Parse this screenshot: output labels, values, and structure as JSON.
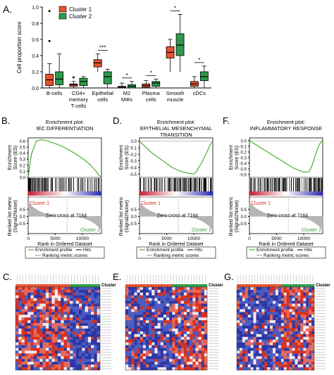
{
  "panel_letters": {
    "a": "A.",
    "b": "B.",
    "d": "D.",
    "f": "F.",
    "c": "C.",
    "e": "E.",
    "g": "G."
  },
  "boxplot": {
    "ylabel": "Cell proportion score",
    "yticks": [
      "0.0",
      "0.2",
      "0.4",
      "0.6",
      "0.8",
      "1.0"
    ],
    "legend": [
      "Cluster 1",
      "Cluster 2"
    ],
    "category_labels": [
      [
        "B-cells"
      ],
      [
        "CD4+",
        "memory",
        "T-cells"
      ],
      [
        "Epithelial",
        "cells"
      ],
      [
        "M2",
        "MΦs"
      ],
      [
        "Plasma",
        "cells"
      ],
      [
        "Smooth",
        "muscle"
      ],
      [
        "cDCs"
      ]
    ],
    "significance": [
      "",
      "",
      "***",
      "*",
      "*",
      "*",
      "*"
    ]
  },
  "gsea_common": {
    "es_label": [
      "Enrichment",
      "Score (ES)"
    ],
    "rank_label": [
      "Ranked list metric",
      "(Signal2Noise)"
    ],
    "xlabel": "Rank in Ordered Dataset",
    "xticks": [
      "0",
      "5000",
      "10000"
    ],
    "cluster1": "Cluster 1",
    "cluster2": "Cluster 2",
    "zero_cross": "Zero cross at 7164",
    "legend": [
      "Enrichment profile",
      "Hits",
      "Ranking metric scores"
    ]
  },
  "gsea_panels": [
    {
      "title1": "Enrichment plot:",
      "title2": "IEC DIFFERENTIATION",
      "yticks": [
        "0.6",
        "0.5",
        "0.4",
        "0.3",
        "0.2",
        "0.1",
        "0.0"
      ]
    },
    {
      "title1": "Enrichment plot:",
      "title2": "EPITHELIAL MESENCHYMAL",
      "title3": "TRANSITION",
      "yticks": [
        "0.0",
        "-0.1",
        "-0.2",
        "-0.3",
        "-0.4",
        "-0.5"
      ]
    },
    {
      "title1": "Enrichment plot:",
      "title2": "INFLAMMATORY RESPONSE",
      "yticks": [
        "0.0",
        "-0.1",
        "-0.2",
        "-0.3",
        "-0.4",
        "-0.5",
        "-0.6"
      ],
      "rank_yticks": [
        "0.5",
        "0.0",
        "-0.5"
      ]
    }
  ],
  "rank_yticks": [
    "0.5",
    "0.0",
    "-0.5"
  ],
  "heatmap_header": "Cluster",
  "chart_data": [
    {
      "type": "box",
      "categories": [
        "B-cells",
        "CD4+ memory T-cells",
        "Epithelial cells",
        "M2 MΦs",
        "Plasma cells",
        "Smooth muscle",
        "cDCs"
      ],
      "ylabel": "Cell proportion score",
      "ylim": [
        0,
        1.0
      ],
      "series": [
        {
          "name": "Cluster 1",
          "color": "#e8522e",
          "boxes": [
            {
              "min": 0.0,
              "q1": 0.03,
              "median": 0.1,
              "q3": 0.17,
              "max": 0.3,
              "outliers": [
                0.58,
                0.95
              ]
            },
            {
              "min": 0.0,
              "q1": 0.02,
              "median": 0.04,
              "q3": 0.05,
              "max": 0.08,
              "outliers": [
                0.13
              ]
            },
            {
              "min": 0.2,
              "q1": 0.26,
              "median": 0.31,
              "q3": 0.35,
              "max": 0.42,
              "outliers": []
            },
            {
              "min": 0.0,
              "q1": 0.0,
              "median": 0.01,
              "q3": 0.02,
              "max": 0.06,
              "outliers": []
            },
            {
              "min": 0.0,
              "q1": 0.01,
              "median": 0.03,
              "q3": 0.05,
              "max": 0.09,
              "outliers": []
            },
            {
              "min": 0.2,
              "q1": 0.37,
              "median": 0.44,
              "q3": 0.51,
              "max": 0.6,
              "outliers": []
            },
            {
              "min": 0.0,
              "q1": 0.02,
              "median": 0.05,
              "q3": 0.08,
              "max": 0.14,
              "outliers": []
            }
          ]
        },
        {
          "name": "Cluster 2",
          "color": "#2e9a4b",
          "boxes": [
            {
              "min": 0.0,
              "q1": 0.04,
              "median": 0.11,
              "q3": 0.2,
              "max": 0.42,
              "outliers": []
            },
            {
              "min": 0.0,
              "q1": 0.03,
              "median": 0.08,
              "q3": 0.12,
              "max": 0.14,
              "outliers": []
            },
            {
              "min": 0.0,
              "q1": 0.05,
              "median": 0.14,
              "q3": 0.2,
              "max": 0.23,
              "outliers": []
            },
            {
              "min": 0.0,
              "q1": 0.0,
              "median": 0.02,
              "q3": 0.04,
              "max": 0.08,
              "outliers": []
            },
            {
              "min": 0.0,
              "q1": 0.02,
              "median": 0.06,
              "q3": 0.08,
              "max": 0.11,
              "outliers": []
            },
            {
              "min": 0.2,
              "q1": 0.4,
              "median": 0.53,
              "q3": 0.67,
              "max": 0.91,
              "outliers": []
            },
            {
              "min": 0.0,
              "q1": 0.09,
              "median": 0.14,
              "q3": 0.2,
              "max": 0.27,
              "outliers": []
            }
          ]
        }
      ]
    },
    {
      "type": "line",
      "title": "IEC DIFFERENTIATION",
      "xlabel": "Rank in Ordered Dataset",
      "ylabel": "Enrichment Score (ES)",
      "xlim": [
        0,
        13500
      ],
      "ylim": [
        0,
        0.65
      ],
      "x": [
        0,
        600,
        1500,
        2500,
        3500,
        4500,
        5500,
        6500,
        7500,
        8500,
        9500,
        10500,
        11500,
        12000,
        12500,
        13000,
        13500
      ],
      "y": [
        0,
        0.38,
        0.6,
        0.62,
        0.6,
        0.57,
        0.54,
        0.5,
        0.45,
        0.4,
        0.34,
        0.28,
        0.2,
        0.15,
        0.1,
        0.04,
        0.0
      ]
    },
    {
      "type": "line",
      "title": "EPITHELIAL MESENCHYMAL TRANSITION",
      "xlabel": "Rank in Ordered Dataset",
      "ylabel": "Enrichment Score (ES)",
      "xlim": [
        0,
        13500
      ],
      "ylim": [
        -0.55,
        0.05
      ],
      "x": [
        0,
        1000,
        2000,
        3000,
        4000,
        5000,
        6000,
        7000,
        8000,
        9000,
        10000,
        10500,
        11500,
        12500,
        13000,
        13500
      ],
      "y": [
        0,
        -0.08,
        -0.16,
        -0.22,
        -0.28,
        -0.34,
        -0.4,
        -0.44,
        -0.47,
        -0.49,
        -0.5,
        -0.46,
        -0.32,
        -0.15,
        -0.06,
        0.0
      ]
    },
    {
      "type": "line",
      "title": "INFLAMMATORY RESPONSE",
      "xlabel": "Rank in Ordered Dataset",
      "ylabel": "Enrichment Score (ES)",
      "xlim": [
        0,
        13500
      ],
      "ylim": [
        -0.65,
        0.05
      ],
      "x": [
        0,
        1000,
        2000,
        3000,
        4000,
        5000,
        6000,
        7000,
        8000,
        9000,
        10000,
        11000,
        11500,
        12000,
        12500,
        13000,
        13500
      ],
      "y": [
        0,
        -0.06,
        -0.12,
        -0.18,
        -0.24,
        -0.3,
        -0.36,
        -0.42,
        -0.48,
        -0.52,
        -0.56,
        -0.55,
        -0.45,
        -0.3,
        -0.15,
        -0.05,
        0.0
      ]
    }
  ]
}
